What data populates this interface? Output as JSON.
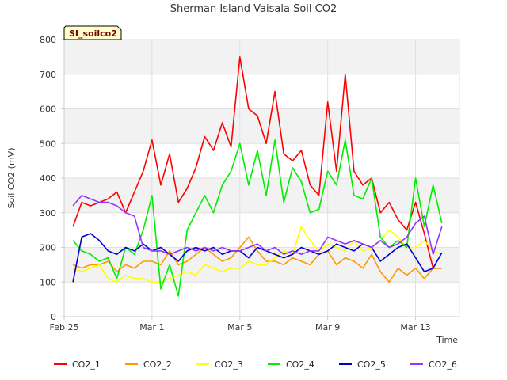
{
  "chart_data": {
    "type": "line",
    "title": "Sherman Island Vaisala Soil CO2",
    "tag": "SI_soilco2",
    "xlabel": "Time",
    "ylabel": "Soil CO2 (mV)",
    "xlim": [
      0,
      18
    ],
    "ylim": [
      0,
      800
    ],
    "y_ticks": [
      0,
      100,
      200,
      300,
      400,
      500,
      600,
      700,
      800
    ],
    "x_ticks": [
      {
        "value": 0,
        "label": "Feb 25"
      },
      {
        "value": 4,
        "label": "Mar 1"
      },
      {
        "value": 8,
        "label": "Mar 5"
      },
      {
        "value": 12,
        "label": "Mar 9"
      },
      {
        "value": 16,
        "label": "Mar 13"
      }
    ],
    "grid": true,
    "legend_position": "bottom",
    "x": [
      0.4,
      0.8,
      1.2,
      1.6,
      2.0,
      2.4,
      2.8,
      3.2,
      3.6,
      4.0,
      4.4,
      4.8,
      5.2,
      5.6,
      6.0,
      6.4,
      6.8,
      7.2,
      7.6,
      8.0,
      8.4,
      8.8,
      9.2,
      9.6,
      10.0,
      10.4,
      10.8,
      11.2,
      11.6,
      12.0,
      12.4,
      12.8,
      13.2,
      13.6,
      14.0,
      14.4,
      14.8,
      15.2,
      15.6,
      16.0,
      16.4,
      16.8,
      17.2
    ],
    "series": [
      {
        "name": "CO2_1",
        "color": "#ff0000",
        "values": [
          260,
          330,
          320,
          330,
          340,
          360,
          300,
          360,
          420,
          510,
          380,
          470,
          330,
          370,
          430,
          520,
          480,
          560,
          490,
          750,
          600,
          580,
          500,
          650,
          470,
          450,
          480,
          380,
          350,
          620,
          420,
          700,
          420,
          380,
          400,
          300,
          330,
          280,
          250,
          330,
          240,
          140,
          140
        ]
      },
      {
        "name": "CO2_2",
        "color": "#ff9900",
        "values": [
          150,
          140,
          150,
          150,
          160,
          130,
          150,
          140,
          160,
          160,
          150,
          190,
          150,
          160,
          180,
          200,
          180,
          160,
          170,
          200,
          230,
          190,
          160,
          160,
          150,
          170,
          160,
          150,
          180,
          190,
          150,
          170,
          160,
          140,
          180,
          130,
          100,
          140,
          120,
          140,
          110,
          140,
          140
        ]
      },
      {
        "name": "CO2_3",
        "color": "#ffff00",
        "values": [
          140,
          130,
          140,
          150,
          110,
          100,
          120,
          110,
          110,
          100,
          100,
          110,
          120,
          130,
          120,
          150,
          140,
          130,
          140,
          140,
          160,
          150,
          150,
          170,
          190,
          180,
          260,
          220,
          190,
          210,
          200,
          190,
          220,
          190,
          200,
          220,
          250,
          230,
          200,
          200,
          220,
          190,
          180
        ]
      },
      {
        "name": "CO2_4",
        "color": "#00ee00",
        "values": [
          220,
          190,
          180,
          160,
          170,
          110,
          200,
          180,
          250,
          350,
          80,
          150,
          60,
          250,
          300,
          350,
          300,
          380,
          420,
          500,
          380,
          480,
          350,
          510,
          330,
          430,
          390,
          300,
          310,
          420,
          380,
          510,
          350,
          340,
          400,
          230,
          200,
          220,
          200,
          400,
          260,
          380,
          270
        ]
      },
      {
        "name": "CO2_5",
        "color": "#0000cc",
        "values": [
          100,
          230,
          240,
          220,
          190,
          180,
          200,
          190,
          210,
          190,
          200,
          180,
          160,
          190,
          200,
          190,
          200,
          180,
          190,
          190,
          170,
          200,
          190,
          180,
          170,
          180,
          200,
          190,
          180,
          190,
          210,
          200,
          190,
          210,
          200,
          160,
          180,
          200,
          210,
          170,
          130,
          140,
          185
        ]
      },
      {
        "name": "CO2_6",
        "color": "#9933ff",
        "values": [
          320,
          350,
          340,
          330,
          330,
          320,
          300,
          290,
          200,
          190,
          190,
          180,
          190,
          200,
          190,
          200,
          190,
          200,
          190,
          190,
          200,
          210,
          190,
          200,
          180,
          190,
          180,
          190,
          190,
          230,
          220,
          210,
          220,
          210,
          200,
          220,
          200,
          210,
          230,
          270,
          290,
          180,
          260
        ]
      }
    ]
  }
}
